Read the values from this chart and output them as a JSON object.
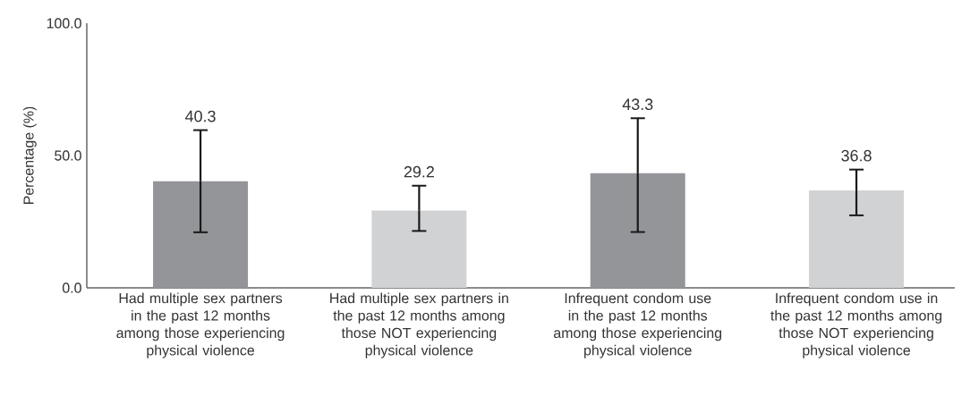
{
  "chart_data": {
    "type": "bar",
    "ylabel": "Percentage (%)",
    "categories": [
      "Had multiple sex partners in the past 12 months among those experiencing physical violence",
      "Had multiple sex partners in the past 12 months among those NOT experiencing physical violence",
      "Infrequent condom use in the past 12 months among those experiencing physical violence",
      "Infrequent condom use in the past 12 months among those NOT experiencing physical violence"
    ],
    "values": [
      40.3,
      29.2,
      43.3,
      36.8
    ],
    "colors": [
      "#939598",
      "#d1d2d4",
      "#939598",
      "#d1d2d4"
    ],
    "errors": [
      [
        21.0,
        59.6
      ],
      [
        21.5,
        38.6
      ],
      [
        21.1,
        64.1
      ],
      [
        27.4,
        44.7
      ]
    ],
    "value_labels": [
      null,
      "29.2",
      null,
      "36.8"
    ],
    "annotations": [
      {
        "text": "40.3",
        "x": "Had multiple sex partners in the past 12 months among those experiencing physical violence",
        "y": 59.6
      },
      {
        "text": "43.3",
        "x": "Infrequent condom use in the past 12 months among those experiencing physical violence",
        "y": 64.1
      }
    ],
    "ylim": [
      0,
      100
    ],
    "yticks": [
      {
        "value": 0,
        "label": "0.0"
      },
      {
        "value": 50,
        "label": "50.0"
      },
      {
        "value": 100,
        "label": "100.0"
      }
    ],
    "grid": false
  }
}
